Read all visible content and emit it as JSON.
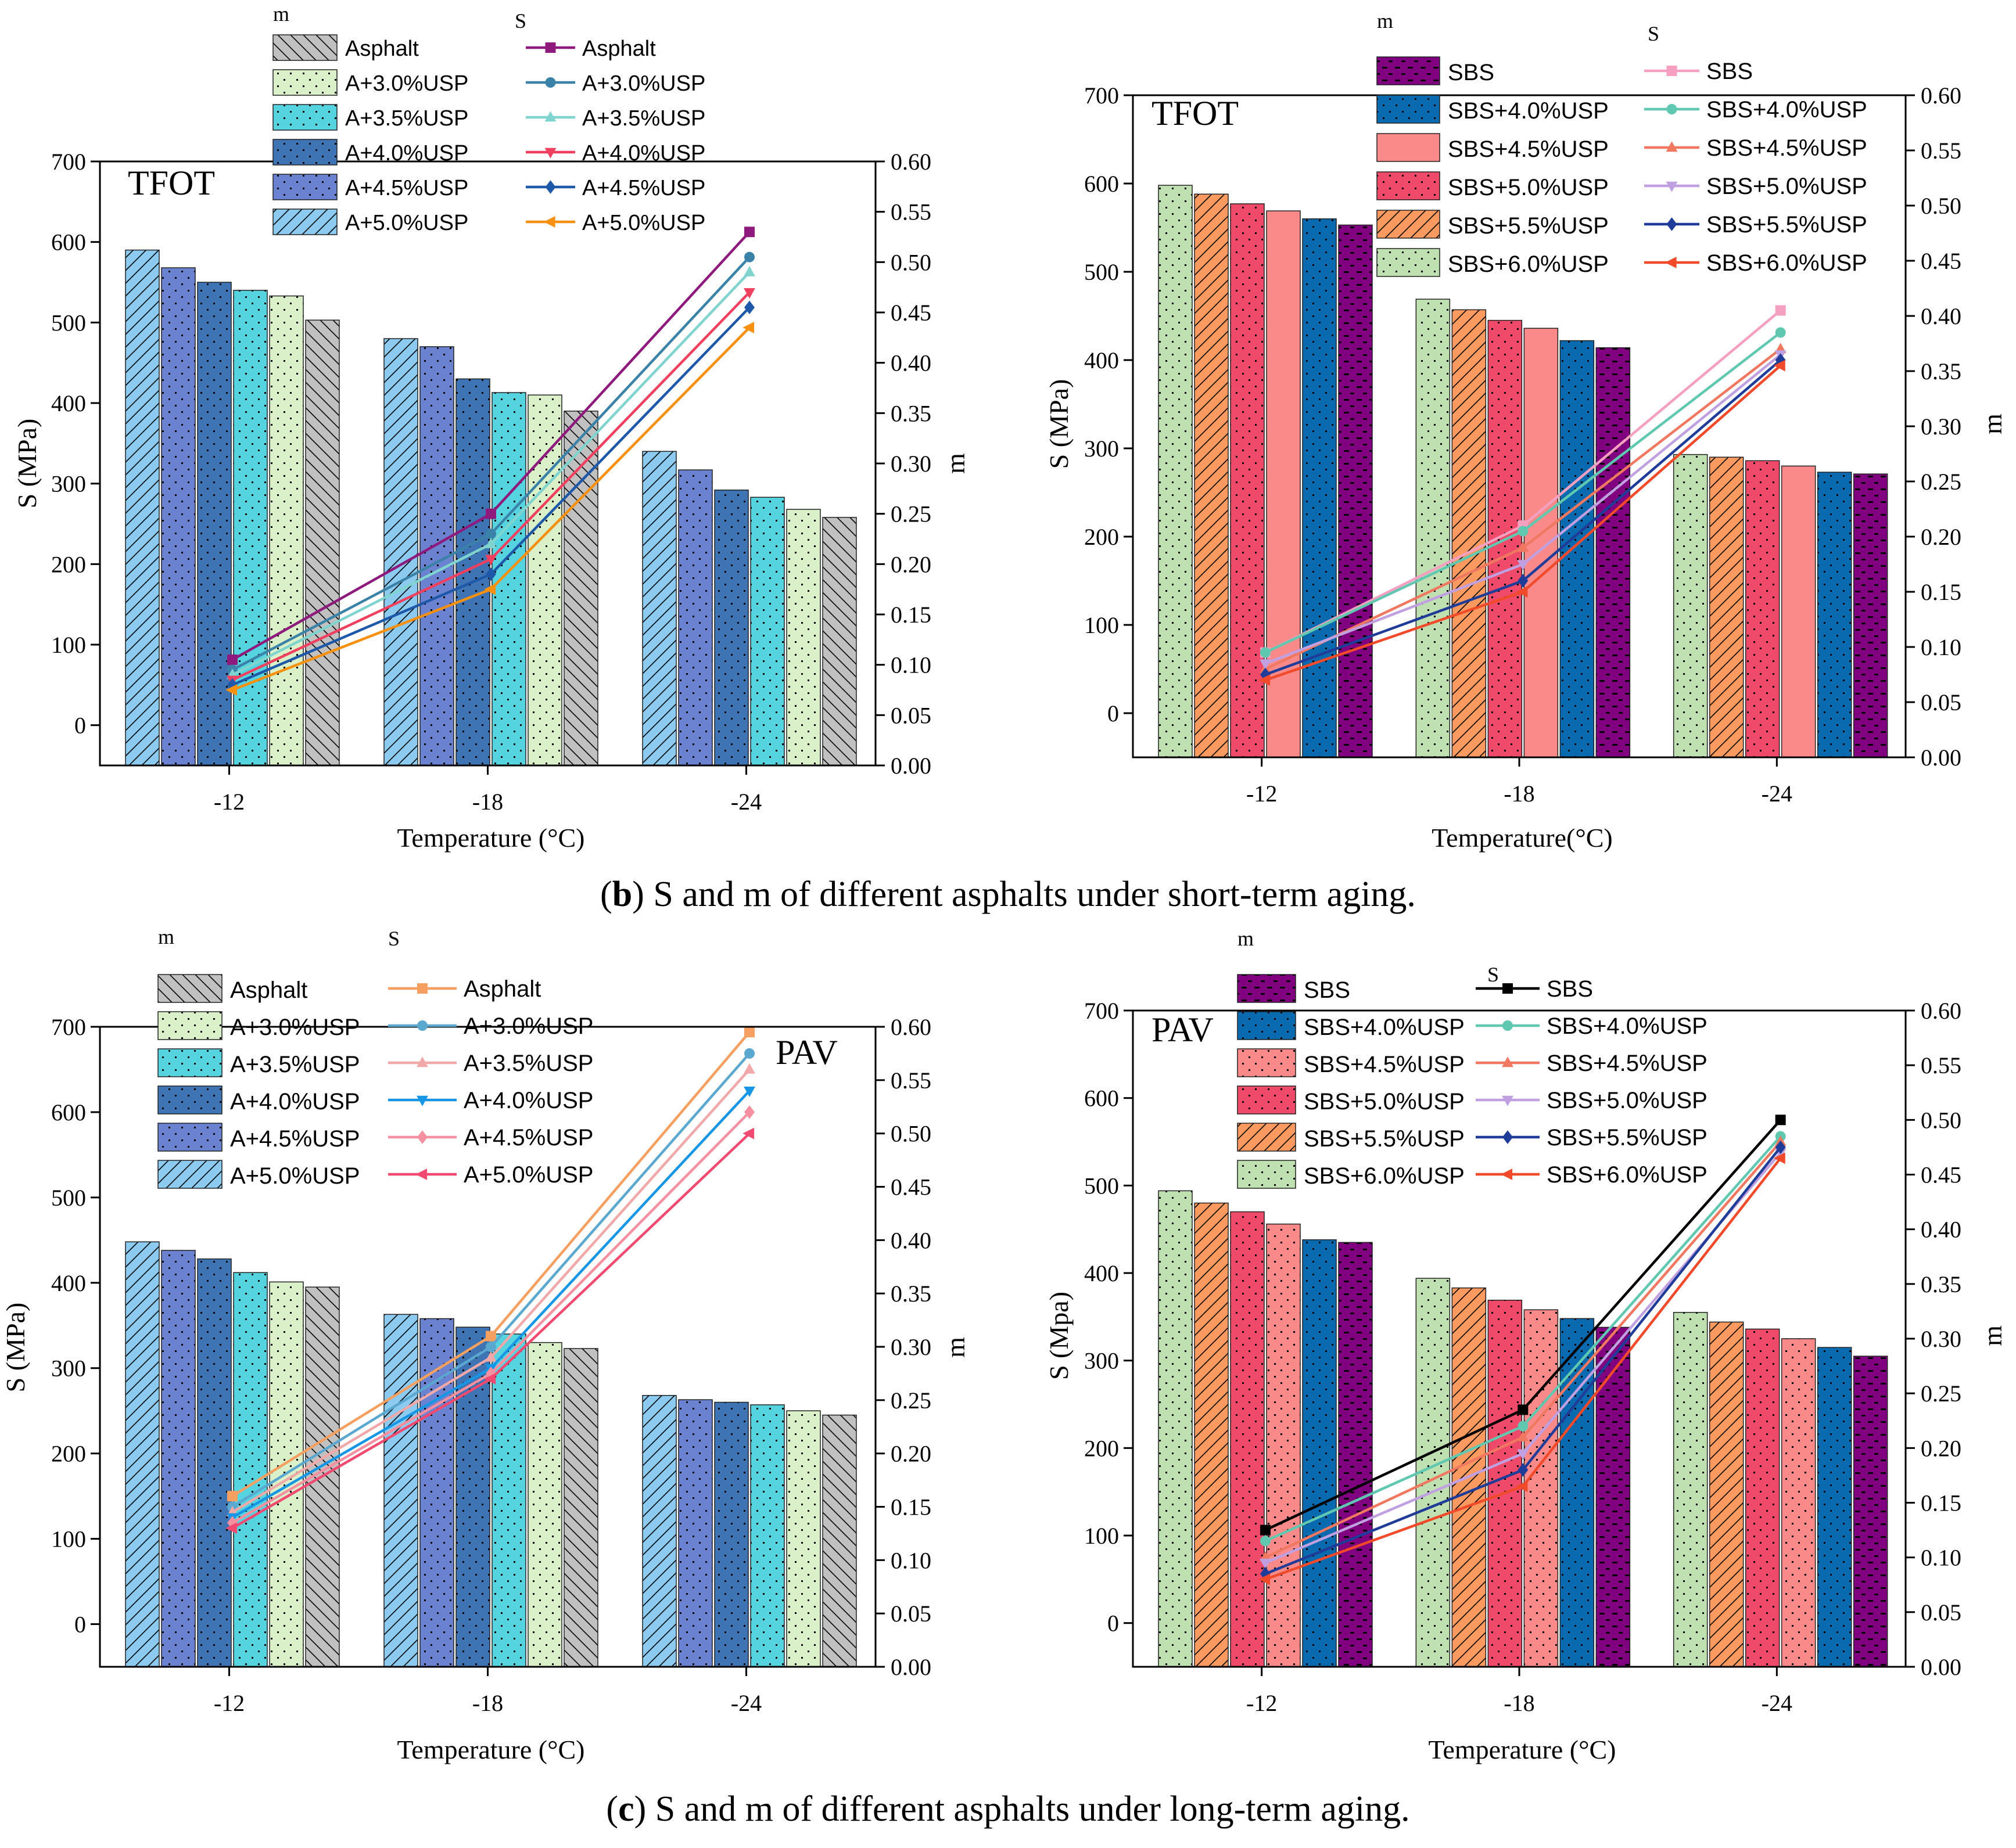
{
  "captions": {
    "short_term": {
      "prefix": "(",
      "letter": "b",
      "text": ") S and m of different asphalts under short-term aging."
    },
    "long_term": {
      "prefix": "(",
      "letter": "c",
      "text": ") S and m of different asphalts under long-term aging."
    }
  },
  "colors": {
    "asphalt_bar": "#c0c0c0",
    "a30_bar": "#d9f0c8",
    "a35_bar": "#55d4e0",
    "a40_bar": "#3f74b4",
    "a45_bar": "#6b82d0",
    "a50_bar": "#8ccaf0",
    "sbs_bar": "#800080",
    "sbs40_bar": "#0a6ab0",
    "sbs45_bar": "#fa8a8a",
    "sbs50_bar": "#f04a6a",
    "sbs55_bar": "#fa9a60",
    "sbs60_bar": "#bfe0b0"
  },
  "chart_data": [
    {
      "id": "tl",
      "type": "bar+line",
      "title": "TFOT",
      "xlabel": "Temperature (°C)",
      "ylabel": "S (MPa)",
      "y2label": "m",
      "legend_m_heading": "m",
      "legend_s_heading": "S",
      "categories": [
        "-12",
        "-18",
        "-24"
      ],
      "ylim": [
        -50,
        700
      ],
      "y2lim": [
        0.0,
        0.6
      ],
      "yticks": [
        "0",
        "100",
        "200",
        "300",
        "400",
        "500",
        "600",
        "700"
      ],
      "y2ticks": [
        "0.00",
        "0.05",
        "0.10",
        "0.15",
        "0.20",
        "0.25",
        "0.30",
        "0.35",
        "0.40",
        "0.45",
        "0.50",
        "0.55",
        "0.60"
      ],
      "bar_series": [
        {
          "name": "A+5.0%USP",
          "color": "#8ccaf0",
          "pattern": "hatch",
          "values": [
            590,
            480,
            340
          ]
        },
        {
          "name": "A+4.5%USP",
          "color": "#6b82d0",
          "pattern": "dots",
          "values": [
            568,
            470,
            317
          ]
        },
        {
          "name": "A+4.0%USP",
          "color": "#3f74b4",
          "pattern": "dots",
          "values": [
            550,
            430,
            292
          ]
        },
        {
          "name": "A+3.5%USP",
          "color": "#55d4e0",
          "pattern": "dots",
          "values": [
            540,
            413,
            283
          ]
        },
        {
          "name": "A+3.0%USP",
          "color": "#d9f0c8",
          "pattern": "dots",
          "values": [
            533,
            410,
            268
          ]
        },
        {
          "name": "Asphalt",
          "color": "#c0c0c0",
          "pattern": "backhatch",
          "values": [
            503,
            390,
            258
          ]
        }
      ],
      "line_series": [
        {
          "name": "Asphalt",
          "color": "#8e1a7e",
          "marker": "square",
          "values": [
            0.105,
            0.25,
            0.53
          ]
        },
        {
          "name": "A+3.0%USP",
          "color": "#3a82a8",
          "marker": "circle",
          "values": [
            0.095,
            0.23,
            0.505
          ]
        },
        {
          "name": "A+3.5%USP",
          "color": "#80d4d0",
          "marker": "triangle",
          "values": [
            0.09,
            0.22,
            0.49
          ]
        },
        {
          "name": "A+4.0%USP",
          "color": "#f04060",
          "marker": "triangle-down",
          "values": [
            0.085,
            0.205,
            0.47
          ]
        },
        {
          "name": "A+4.5%USP",
          "color": "#1e58a8",
          "marker": "diamond",
          "values": [
            0.08,
            0.19,
            0.455
          ]
        },
        {
          "name": "A+5.0%USP",
          "color": "#f59010",
          "marker": "left",
          "values": [
            0.075,
            0.175,
            0.435
          ]
        }
      ]
    },
    {
      "id": "tr",
      "type": "bar+line",
      "title": "TFOT",
      "xlabel": "Temperature(°C)",
      "ylabel": "S (MPa)",
      "y2label": "m",
      "legend_m_heading": "m",
      "legend_s_heading": "S",
      "categories": [
        "-12",
        "-18",
        "-24"
      ],
      "ylim": [
        -50,
        700
      ],
      "y2lim": [
        0.0,
        0.6
      ],
      "yticks": [
        "0",
        "100",
        "200",
        "300",
        "400",
        "500",
        "600",
        "700"
      ],
      "y2ticks": [
        "0.00",
        "0.05",
        "0.10",
        "0.15",
        "0.20",
        "0.25",
        "0.30",
        "0.35",
        "0.40",
        "0.45",
        "0.50",
        "0.55",
        "0.60"
      ],
      "bar_series": [
        {
          "name": "SBS+6.0%USP",
          "color": "#bfe0b0",
          "pattern": "dots",
          "values": [
            598,
            469,
            293
          ]
        },
        {
          "name": "SBS+5.5%USP",
          "color": "#fa9a60",
          "pattern": "hatch",
          "values": [
            588,
            457,
            290
          ]
        },
        {
          "name": "SBS+5.0%USP",
          "color": "#f04a6a",
          "pattern": "dots",
          "values": [
            577,
            445,
            286
          ]
        },
        {
          "name": "SBS+4.5%USP",
          "color": "#fa8a8a",
          "pattern": "none",
          "values": [
            569,
            436,
            280
          ]
        },
        {
          "name": "SBS+4.0%USP",
          "color": "#0a6ab0",
          "pattern": "dots",
          "values": [
            560,
            422,
            273
          ]
        },
        {
          "name": "SBS",
          "color": "#800080",
          "pattern": "dashes",
          "values": [
            553,
            414,
            271
          ]
        }
      ],
      "line_series": [
        {
          "name": "SBS",
          "color": "#f5a0c0",
          "marker": "square",
          "values": [
            0.095,
            0.21,
            0.405
          ]
        },
        {
          "name": "SBS+4.0%USP",
          "color": "#60c8b0",
          "marker": "circle",
          "values": [
            0.095,
            0.205,
            0.385
          ]
        },
        {
          "name": "SBS+4.5%USP",
          "color": "#f07860",
          "marker": "triangle",
          "values": [
            0.08,
            0.19,
            0.37
          ]
        },
        {
          "name": "SBS+5.0%USP",
          "color": "#c0a0e0",
          "marker": "triangle-down",
          "values": [
            0.085,
            0.175,
            0.365
          ]
        },
        {
          "name": "SBS+5.5%USP",
          "color": "#1e3c98",
          "marker": "diamond",
          "values": [
            0.075,
            0.16,
            0.36
          ]
        },
        {
          "name": "SBS+6.0%USP",
          "color": "#f04a2a",
          "marker": "left",
          "values": [
            0.07,
            0.15,
            0.355
          ]
        }
      ]
    },
    {
      "id": "bl",
      "type": "bar+line",
      "title": "PAV",
      "xlabel": "Temperature (°C)",
      "ylabel": "S (MPa)",
      "y2label": "m",
      "legend_m_heading": "m",
      "legend_s_heading": "S",
      "categories": [
        "-12",
        "-18",
        "-24"
      ],
      "ylim": [
        -50,
        700
      ],
      "y2lim": [
        0.0,
        0.6
      ],
      "yticks": [
        "0",
        "100",
        "200",
        "300",
        "400",
        "500",
        "600",
        "700"
      ],
      "y2ticks": [
        "0.00",
        "0.05",
        "0.10",
        "0.15",
        "0.20",
        "0.25",
        "0.30",
        "0.35",
        "0.40",
        "0.45",
        "0.50",
        "0.55",
        "0.60"
      ],
      "bar_series": [
        {
          "name": "A+5.0%USP",
          "color": "#8ccaf0",
          "pattern": "hatch",
          "values": [
            448,
            363,
            268
          ]
        },
        {
          "name": "A+4.5%USP",
          "color": "#6b82d0",
          "pattern": "dots",
          "values": [
            438,
            358,
            263
          ]
        },
        {
          "name": "A+4.0%USP",
          "color": "#3f74b4",
          "pattern": "dots",
          "values": [
            428,
            348,
            260
          ]
        },
        {
          "name": "A+3.5%USP",
          "color": "#55d4e0",
          "pattern": "dots",
          "values": [
            412,
            340,
            257
          ]
        },
        {
          "name": "A+3.0%USP",
          "color": "#d9f0c8",
          "pattern": "dots",
          "values": [
            401,
            330,
            250
          ]
        },
        {
          "name": "Asphalt",
          "color": "#c0c0c0",
          "pattern": "backhatch",
          "values": [
            395,
            323,
            245
          ]
        }
      ],
      "line_series": [
        {
          "name": "Asphalt",
          "color": "#f5a060",
          "marker": "square",
          "values": [
            0.16,
            0.31,
            0.595
          ]
        },
        {
          "name": "A+3.0%USP",
          "color": "#5aa8d0",
          "marker": "circle",
          "values": [
            0.15,
            0.3,
            0.575
          ]
        },
        {
          "name": "A+3.5%USP",
          "color": "#f0a8a8",
          "marker": "triangle",
          "values": [
            0.145,
            0.29,
            0.56
          ]
        },
        {
          "name": "A+4.0%USP",
          "color": "#1896e6",
          "marker": "triangle-down",
          "values": [
            0.14,
            0.28,
            0.54
          ]
        },
        {
          "name": "A+4.5%USP",
          "color": "#f590a0",
          "marker": "diamond",
          "values": [
            0.135,
            0.275,
            0.52
          ]
        },
        {
          "name": "A+5.0%USP",
          "color": "#f04a70",
          "marker": "left",
          "values": [
            0.13,
            0.27,
            0.5
          ]
        }
      ]
    },
    {
      "id": "br",
      "type": "bar+line",
      "title": "PAV",
      "xlabel": "Temperature (°C)",
      "ylabel": "S (Mpa)",
      "y2label": "m",
      "legend_m_heading": "m",
      "legend_s_heading": "S",
      "categories": [
        "-12",
        "-18",
        "-24"
      ],
      "ylim": [
        -50,
        700
      ],
      "y2lim": [
        0.0,
        0.6
      ],
      "yticks": [
        "0",
        "100",
        "200",
        "300",
        "400",
        "500",
        "600",
        "700"
      ],
      "y2ticks": [
        "0.00",
        "0.05",
        "0.10",
        "0.15",
        "0.20",
        "0.25",
        "0.30",
        "0.35",
        "0.40",
        "0.45",
        "0.50",
        "0.55",
        "0.60"
      ],
      "bar_series": [
        {
          "name": "SBS+6.0%USP",
          "color": "#bfe0b0",
          "pattern": "dots",
          "values": [
            494,
            394,
            355
          ]
        },
        {
          "name": "SBS+5.5%USP",
          "color": "#fa9a60",
          "pattern": "hatch",
          "values": [
            480,
            383,
            344
          ]
        },
        {
          "name": "SBS+5.0%USP",
          "color": "#f04a6a",
          "pattern": "dots",
          "values": [
            470,
            369,
            336
          ]
        },
        {
          "name": "SBS+4.5%USP",
          "color": "#fa8a8a",
          "pattern": "dots",
          "values": [
            456,
            358,
            325
          ]
        },
        {
          "name": "SBS+4.0%USP",
          "color": "#0a6ab0",
          "pattern": "dots",
          "values": [
            438,
            348,
            315
          ]
        },
        {
          "name": "SBS",
          "color": "#800080",
          "pattern": "dashes",
          "values": [
            435,
            338,
            305
          ]
        }
      ],
      "line_series": [
        {
          "name": "SBS",
          "color": "#000000",
          "marker": "square",
          "values": [
            0.125,
            0.235,
            0.5
          ]
        },
        {
          "name": "SBS+4.0%USP",
          "color": "#60c8b0",
          "marker": "circle",
          "values": [
            0.115,
            0.22,
            0.485
          ]
        },
        {
          "name": "SBS+4.5%USP",
          "color": "#f07860",
          "marker": "triangle",
          "values": [
            0.1,
            0.21,
            0.48
          ]
        },
        {
          "name": "SBS+5.0%USP",
          "color": "#c0a0e0",
          "marker": "triangle-down",
          "values": [
            0.095,
            0.195,
            0.47
          ]
        },
        {
          "name": "SBS+5.5%USP",
          "color": "#1e3c98",
          "marker": "diamond",
          "values": [
            0.085,
            0.18,
            0.475
          ]
        },
        {
          "name": "SBS+6.0%USP",
          "color": "#f04a2a",
          "marker": "left",
          "values": [
            0.08,
            0.165,
            0.465
          ]
        }
      ]
    }
  ]
}
